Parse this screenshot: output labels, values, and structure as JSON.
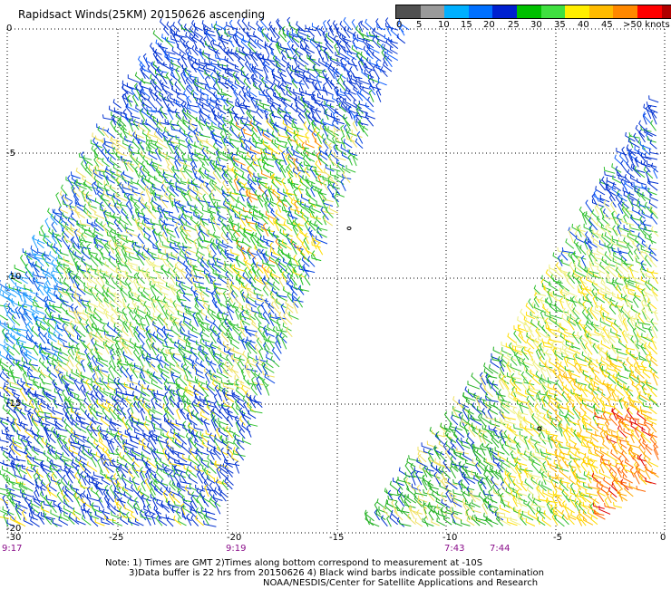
{
  "header": {
    "title": "Rapidsact Winds(25KM) 20150626 ascending"
  },
  "legend": {
    "colors": [
      "#505050",
      "#9a9a9a",
      "#00b0ff",
      "#0070ff",
      "#0020d0",
      "#00c000",
      "#40e040",
      "#ffee00",
      "#ffbb00",
      "#ff8800",
      "#ff0000",
      "#b00000",
      "#8b4513",
      "#cc9999",
      "#ff00ff",
      "#b000b0",
      "#7000c0",
      "#3a1090"
    ],
    "labels": [
      "0",
      "5",
      "10",
      "15",
      "20",
      "25",
      "30",
      "35",
      "40",
      "45",
      ">50 knots"
    ]
  },
  "axes": {
    "x_ticks": [
      "-30",
      "-25",
      "-20",
      "-15",
      "-10",
      "-5",
      "0"
    ],
    "y_ticks": [
      "0",
      "-5",
      "-10",
      "-15",
      "-20"
    ]
  },
  "times": [
    "9:17",
    "9:19",
    "7:43",
    "7:44"
  ],
  "notes": {
    "line1": "Note: 1) Times are GMT 2)Times along bottom correspond to measurement at -10S",
    "line2": "3)Data buffer is 22 hrs from 20150626 4) Black wind barbs indicate possible contamination",
    "line3": "NOAA/NESDIS/Center for Satellite Applications and Research"
  }
}
